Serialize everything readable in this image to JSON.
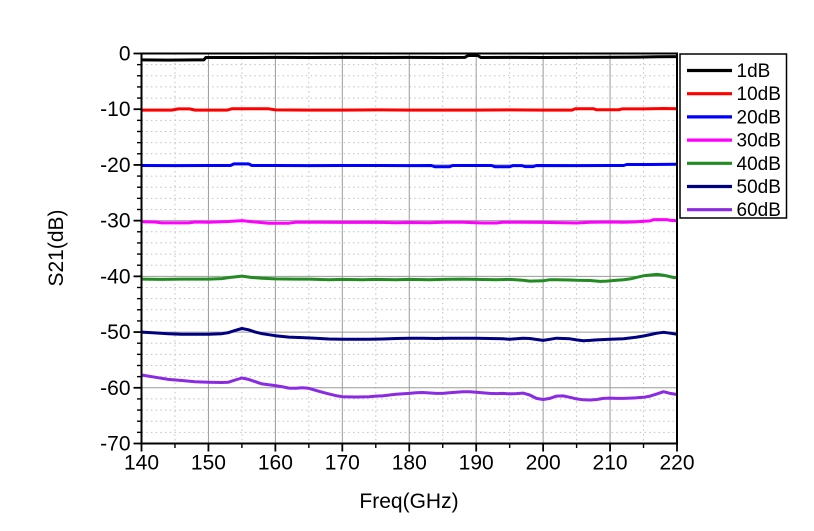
{
  "figure": {
    "background": "#ffffff",
    "axis_color": "#000000",
    "text_color": "#000000",
    "grid_major_color": "#9b9b9b",
    "grid_minor_color": "#c0c0c0"
  },
  "chart_data": {
    "type": "line",
    "title": "",
    "xlabel": "Freq(GHz)",
    "ylabel": "S21(dB)",
    "xlim": [
      140,
      220
    ],
    "ylim": [
      -70,
      0
    ],
    "grid": {
      "major": "solid",
      "minor": "dotted",
      "x_minor_step": 5,
      "y_minor_step": 2
    },
    "x_ticks": {
      "major": [
        140,
        150,
        160,
        170,
        180,
        190,
        200,
        210,
        220
      ],
      "minor": [
        145,
        155,
        165,
        175,
        185,
        195,
        205,
        215
      ]
    },
    "y_ticks": {
      "major": [
        0,
        -10,
        -20,
        -30,
        -40,
        -50,
        -60,
        -70
      ],
      "minor": [
        -2,
        -4,
        -6,
        -8,
        -12,
        -14,
        -16,
        -18,
        -22,
        -24,
        -26,
        -28,
        -32,
        -34,
        -36,
        -38,
        -42,
        -44,
        -46,
        -48,
        -52,
        -54,
        -56,
        -58,
        -62,
        -64,
        -66,
        -68
      ]
    },
    "legend": {
      "position": "outside-right",
      "entries": [
        "1dB",
        "10dB",
        "20dB",
        "30dB",
        "40dB",
        "50dB",
        "60dB"
      ]
    },
    "series": [
      {
        "name": "1dB",
        "color": "#000000",
        "x": [
          140,
          144,
          148,
          149.3,
          149.6,
          155,
          160,
          165,
          170,
          175,
          180,
          185,
          188.3,
          188.8,
          190.2,
          190.7,
          195,
          200,
          205,
          210,
          214,
          217,
          220
        ],
        "y": [
          -1.15,
          -1.18,
          -1.15,
          -1.15,
          -0.72,
          -0.72,
          -0.7,
          -0.72,
          -0.7,
          -0.72,
          -0.7,
          -0.72,
          -0.7,
          -0.35,
          -0.35,
          -0.72,
          -0.7,
          -0.72,
          -0.7,
          -0.68,
          -0.65,
          -0.6,
          -0.55
        ]
      },
      {
        "name": "10dB",
        "color": "#ff0000",
        "x": [
          140,
          144.5,
          145.5,
          147.2,
          148,
          152.8,
          153.5,
          159,
          160,
          165,
          170,
          175,
          180,
          185,
          190,
          195,
          200,
          204.3,
          204.8,
          207.5,
          208,
          211.3,
          211.8,
          215,
          218,
          220
        ],
        "y": [
          -10.15,
          -10.15,
          -9.95,
          -9.95,
          -10.15,
          -10.15,
          -9.93,
          -9.93,
          -10.13,
          -10.15,
          -10.15,
          -10.13,
          -10.15,
          -10.15,
          -10.15,
          -10.13,
          -10.15,
          -10.15,
          -9.9,
          -9.9,
          -10.1,
          -10.1,
          -9.95,
          -9.95,
          -9.88,
          -9.9
        ]
      },
      {
        "name": "20dB",
        "color": "#0000ff",
        "x": [
          140,
          145,
          150,
          153.3,
          153.8,
          156,
          156.5,
          160,
          165,
          170,
          175,
          180,
          183.3,
          183.8,
          186,
          186.5,
          190,
          192.3,
          192.8,
          195,
          195.5,
          196.8,
          197.3,
          198.5,
          199,
          205,
          210,
          212,
          212.5,
          216,
          220
        ],
        "y": [
          -20.1,
          -20.12,
          -20.1,
          -20.1,
          -19.82,
          -19.82,
          -20.1,
          -20.1,
          -20.12,
          -20.1,
          -20.1,
          -20.12,
          -20.1,
          -20.32,
          -20.32,
          -20.1,
          -20.1,
          -20.1,
          -20.32,
          -20.32,
          -20.12,
          -20.12,
          -20.3,
          -20.3,
          -20.1,
          -20.12,
          -20.1,
          -20.1,
          -19.92,
          -19.92,
          -19.88
        ]
      },
      {
        "name": "30dB",
        "color": "#ff00ff",
        "x": [
          140,
          142,
          143,
          147,
          148,
          150,
          153,
          155,
          157,
          159,
          162,
          163,
          167,
          170,
          175,
          178,
          180,
          183,
          185,
          188,
          191,
          193,
          194,
          197,
          200,
          202,
          205,
          207,
          210,
          212,
          214,
          216,
          216.5,
          218.5,
          219,
          220
        ],
        "y": [
          -30.2,
          -30.25,
          -30.4,
          -30.4,
          -30.25,
          -30.3,
          -30.15,
          -30.0,
          -30.25,
          -30.45,
          -30.45,
          -30.3,
          -30.3,
          -30.32,
          -30.3,
          -30.38,
          -30.33,
          -30.38,
          -30.3,
          -30.3,
          -30.42,
          -30.42,
          -30.3,
          -30.3,
          -30.32,
          -30.35,
          -30.42,
          -30.3,
          -30.25,
          -30.3,
          -30.2,
          -30.05,
          -29.82,
          -29.82,
          -29.95,
          -30.0
        ]
      },
      {
        "name": "40dB",
        "color": "#228b22",
        "x": [
          140,
          143,
          146,
          150,
          152,
          153.5,
          155,
          156.5,
          158,
          160,
          163,
          165,
          168,
          170,
          173,
          175,
          178,
          180,
          183,
          185,
          188,
          190,
          193,
          195,
          197,
          198,
          200,
          201,
          202,
          204,
          205,
          207,
          208.5,
          209.5,
          211,
          212,
          213,
          215,
          217,
          218,
          219.5,
          220
        ],
        "y": [
          -40.5,
          -40.55,
          -40.5,
          -40.5,
          -40.4,
          -40.15,
          -39.95,
          -40.2,
          -40.35,
          -40.45,
          -40.5,
          -40.5,
          -40.6,
          -40.55,
          -40.6,
          -40.55,
          -40.6,
          -40.55,
          -40.6,
          -40.55,
          -40.5,
          -40.55,
          -40.6,
          -40.55,
          -40.7,
          -40.85,
          -40.8,
          -40.6,
          -40.6,
          -40.65,
          -40.7,
          -40.75,
          -40.9,
          -40.85,
          -40.7,
          -40.6,
          -40.45,
          -39.9,
          -39.65,
          -39.8,
          -40.2,
          -40.25
        ]
      },
      {
        "name": "50dB",
        "color": "#000080",
        "x": [
          140,
          142,
          144,
          146,
          148,
          150,
          152,
          153,
          154,
          155,
          156,
          157,
          158,
          160,
          162,
          164,
          166,
          168,
          170,
          172,
          174,
          176,
          178,
          180,
          182,
          184,
          186,
          188,
          190,
          192,
          194,
          195,
          196,
          197,
          198,
          200,
          201,
          202,
          204,
          205,
          206,
          207,
          208,
          210,
          212,
          214,
          215,
          216,
          217,
          218,
          219,
          220
        ],
        "y": [
          -50.0,
          -50.15,
          -50.3,
          -50.4,
          -50.4,
          -50.4,
          -50.3,
          -50.1,
          -49.7,
          -49.35,
          -49.6,
          -50.0,
          -50.3,
          -50.65,
          -50.9,
          -51.0,
          -51.1,
          -51.25,
          -51.3,
          -51.3,
          -51.3,
          -51.25,
          -51.15,
          -51.1,
          -51.1,
          -51.15,
          -51.1,
          -51.1,
          -51.1,
          -51.15,
          -51.2,
          -51.3,
          -51.2,
          -51.1,
          -51.15,
          -51.5,
          -51.3,
          -51.1,
          -51.2,
          -51.4,
          -51.55,
          -51.5,
          -51.4,
          -51.3,
          -51.2,
          -50.9,
          -50.7,
          -50.45,
          -50.2,
          -50.05,
          -50.2,
          -50.4
        ]
      },
      {
        "name": "60dB",
        "color": "#8a2be2",
        "x": [
          140,
          141,
          142,
          144,
          146,
          148,
          150,
          152,
          153,
          154,
          155,
          156,
          157,
          158,
          160,
          161,
          162,
          163,
          164,
          165,
          166,
          167,
          168,
          169,
          170,
          172,
          174,
          175,
          176,
          178,
          180,
          181,
          182,
          184,
          185,
          186,
          188,
          189,
          190,
          192,
          193,
          194,
          195,
          196,
          197,
          198,
          199,
          200,
          201,
          202,
          203,
          204,
          205,
          206,
          207,
          208,
          209,
          210,
          211,
          212,
          213,
          214,
          215,
          216,
          217,
          218,
          219,
          220
        ],
        "y": [
          -57.7,
          -57.9,
          -58.1,
          -58.5,
          -58.7,
          -58.9,
          -59.0,
          -59.05,
          -59.0,
          -58.6,
          -58.25,
          -58.5,
          -58.9,
          -59.3,
          -59.6,
          -59.8,
          -60.05,
          -60.1,
          -60.0,
          -60.1,
          -60.45,
          -60.8,
          -61.1,
          -61.4,
          -61.6,
          -61.65,
          -61.6,
          -61.5,
          -61.45,
          -61.15,
          -61.0,
          -60.9,
          -60.85,
          -61.0,
          -61.0,
          -60.9,
          -60.7,
          -60.7,
          -60.8,
          -61.0,
          -61.05,
          -61.0,
          -61.1,
          -61.05,
          -60.95,
          -61.3,
          -61.9,
          -62.1,
          -61.9,
          -61.5,
          -61.45,
          -61.7,
          -62.0,
          -62.15,
          -62.2,
          -62.1,
          -61.9,
          -61.85,
          -61.9,
          -61.9,
          -61.85,
          -61.8,
          -61.7,
          -61.5,
          -61.1,
          -60.7,
          -61.0,
          -61.2
        ]
      }
    ]
  }
}
